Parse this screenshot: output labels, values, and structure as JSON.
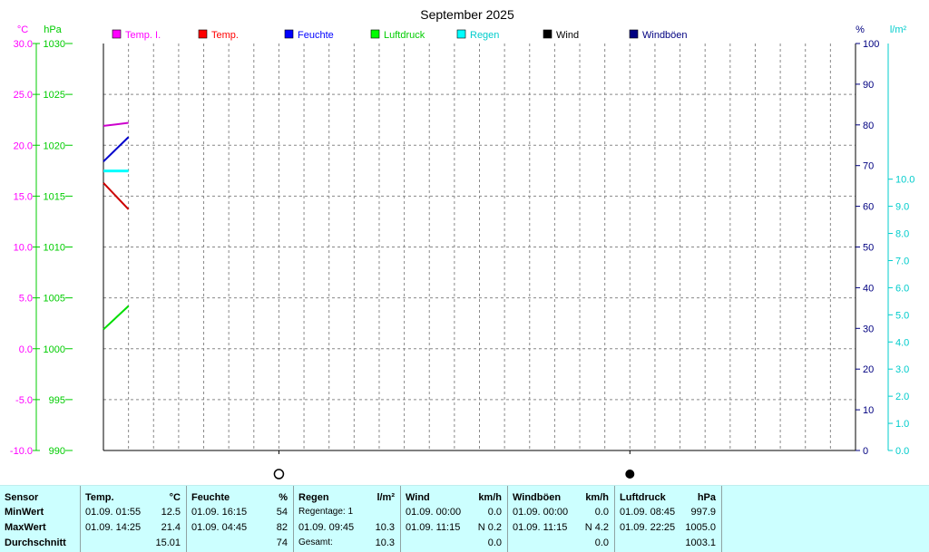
{
  "chart_data": {
    "type": "line",
    "title": "September 2025",
    "axes": {
      "temp": {
        "unit": "°C",
        "range": [
          -10,
          30
        ],
        "ticks": [
          "-10.0",
          "-5.0",
          "0.0",
          "5.0",
          "10.0",
          "15.0",
          "20.0",
          "25.0",
          "30.0"
        ],
        "color": "#ff00ff"
      },
      "pressure": {
        "unit": "hPa",
        "range": [
          990,
          1030
        ],
        "ticks": [
          "990",
          "995",
          "1000",
          "1005",
          "1010",
          "1015",
          "1020",
          "1025",
          "1030"
        ],
        "color": "#00cc00"
      },
      "humidity": {
        "unit": "%",
        "range": [
          0,
          100
        ],
        "ticks": [
          "0",
          "10",
          "20",
          "30",
          "40",
          "50",
          "60",
          "70",
          "80",
          "90",
          "100"
        ],
        "color": "#000080"
      },
      "rain": {
        "unit": "l/m²",
        "range": [
          0,
          10
        ],
        "ticks": [
          "0.0",
          "1.0",
          "2.0",
          "3.0",
          "4.0",
          "5.0",
          "6.0",
          "7.0",
          "8.0",
          "9.0",
          "10.0"
        ],
        "color": "#00cccc"
      }
    },
    "x_days": 30,
    "legend": [
      {
        "name": "Temp. I.",
        "color": "#ff00ff"
      },
      {
        "name": "Temp.",
        "color": "#ff0000"
      },
      {
        "name": "Feuchte",
        "color": "#0000ff"
      },
      {
        "name": "Luftdruck",
        "color": "#00ff00"
      },
      {
        "name": "Regen",
        "color": "#00ffff"
      },
      {
        "name": "Wind",
        "color": "#000000"
      },
      {
        "name": "Windböen",
        "color": "#000080"
      }
    ],
    "series": [
      {
        "name": "Temp. I.",
        "axis": "temp",
        "color": "#cc00cc",
        "x": [
          0,
          1
        ],
        "values": [
          21.9,
          22.2
        ]
      },
      {
        "name": "Temp.",
        "axis": "temp",
        "color": "#cc0000",
        "x": [
          0,
          1
        ],
        "values": [
          16.3,
          13.7
        ]
      },
      {
        "name": "Feuchte",
        "axis": "humidity",
        "color": "#0000cc",
        "x": [
          0,
          1
        ],
        "values": [
          71,
          77
        ]
      },
      {
        "name": "Luftdruck",
        "axis": "pressure",
        "color": "#00dd00",
        "x": [
          0,
          1
        ],
        "values": [
          1001.9,
          1004.2
        ]
      },
      {
        "name": "Regen",
        "axis": "rain",
        "color": "#00ffff",
        "x": [
          0,
          1
        ],
        "values": [
          10.3,
          10.3
        ]
      }
    ],
    "moon_phases": [
      {
        "day": 7,
        "phase": "full-moon"
      },
      {
        "day": 21,
        "phase": "new-moon"
      }
    ],
    "grid": true
  },
  "table": {
    "header": {
      "sensor": "Sensor",
      "temp": "Temp.",
      "temp_unit": "°C",
      "feuchte": "Feuchte",
      "feuchte_unit": "%",
      "regen": "Regen",
      "regen_unit": "l/m²",
      "wind": "Wind",
      "wind_unit": "km/h",
      "boeen": "Windböen",
      "boeen_unit": "km/h",
      "druck": "Luftdruck",
      "druck_unit": "hPa"
    },
    "min": {
      "label": "MinWert",
      "temp_time": "01.09.  01:55",
      "temp_val": "12.5",
      "feuchte_time": "01.09.  16:15",
      "feuchte_val": "54",
      "regen_text": "Regentage: 1",
      "wind_time": "01.09.  00:00",
      "wind_val": "0.0",
      "boeen_time": "01.09.  00:00",
      "boeen_val": "0.0",
      "druck_time": "01.09.  08:45",
      "druck_val": "997.9"
    },
    "max": {
      "label": "MaxWert",
      "temp_time": "01.09.  14:25",
      "temp_val": "21.4",
      "feuchte_time": "01.09.  04:45",
      "feuchte_val": "82",
      "regen_time": "01.09.  09:45",
      "regen_val": "10.3",
      "wind_time": "01.09.  11:15",
      "wind_val": "N 0.2",
      "boeen_time": "01.09.  11:15",
      "boeen_val": "N 4.2",
      "druck_time": "01.09.  22:25",
      "druck_val": "1005.0"
    },
    "avg": {
      "label": "Durchschnitt",
      "temp_val": "15.01",
      "feuchte_val": "74",
      "regen_text": "Gesamt:",
      "regen_val": "10.3",
      "wind_val": "0.0",
      "boeen_val": "0.0",
      "druck_val": "1003.1"
    }
  }
}
